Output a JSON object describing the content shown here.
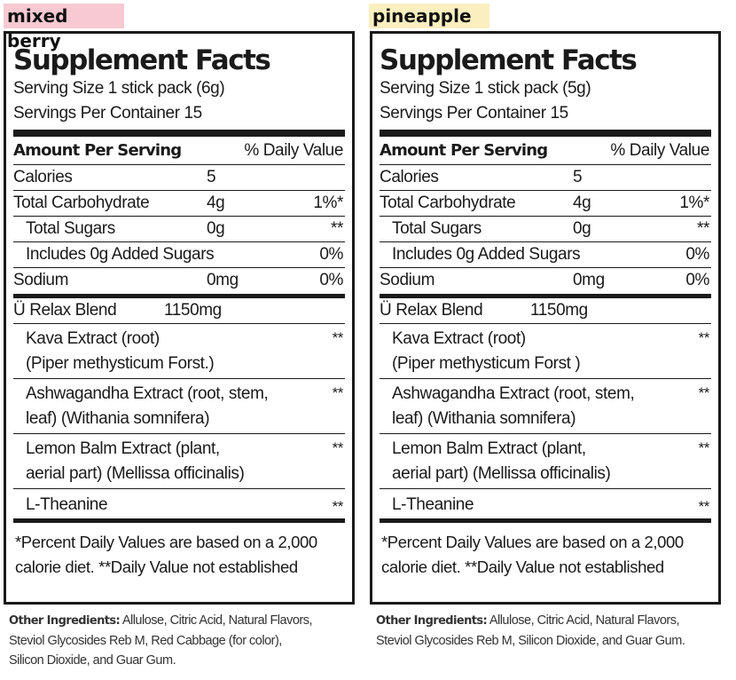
{
  "left": {
    "flavor": "mixed berry",
    "flavor_bg": "#f7c9d3",
    "title": "Supplement Facts",
    "serving_size": "Serving Size 1 stick pack (6g)",
    "servings_per_container": "Servings Per Container 15",
    "amount_header": "Amount Per Serving",
    "dv_header": "% Daily Value",
    "nutrients": [
      {
        "name": "Calories",
        "amount": "5",
        "dv": ""
      },
      {
        "name": "Total Carbohydrate",
        "amount": "4g",
        "dv": "1%*"
      },
      {
        "name": "Total Sugars",
        "amount": "0g",
        "dv": "**"
      },
      {
        "name": "Includes 0g Added Sugars",
        "amount": "",
        "dv": "0%"
      },
      {
        "name": "Sodium",
        "amount": "0mg",
        "dv": "0%"
      }
    ],
    "blend_name": "Ü Relax Blend",
    "blend_amount": "1150mg",
    "ingredients": [
      {
        "line1": "Kava Extract (root)",
        "line2": "(Piper methysticum Forst.)",
        "dv": "**"
      },
      {
        "line1": "Ashwagandha Extract (root, stem,",
        "line2": "leaf) (Withania somnifera)",
        "dv": "**"
      },
      {
        "line1": "Lemon Balm Extract (plant,",
        "line2": "aerial part) (Mellissa officinalis)",
        "dv": "**"
      },
      {
        "line1": "L-Theanine",
        "line2": "",
        "dv": "**"
      }
    ],
    "footnote_1": "*Percent Daily Values are based on a 2,000",
    "footnote_2": " calorie diet. **Daily Value not established",
    "other_label": "Other Ingredients:",
    "other_lines": [
      " Allulose, Citric Acid, Natural Flavors,",
      "Steviol Glycosides Reb M, Red Cabbage (for color),",
      "Silicon Dioxide, and Guar Gum."
    ]
  },
  "right": {
    "flavor": "pineapple",
    "flavor_bg": "#fbefc0",
    "title": "Supplement Facts",
    "serving_size": "Serving Size 1 stick pack (5g)",
    "servings_per_container": "Servings Per Container 15",
    "amount_header": "Amount Per Serving",
    "dv_header": "% Daily Value",
    "nutrients": [
      {
        "name": "Calories",
        "amount": "5",
        "dv": ""
      },
      {
        "name": "Total Carbohydrate",
        "amount": "4g",
        "dv": "1%*"
      },
      {
        "name": "Total Sugars",
        "amount": "0g",
        "dv": "**"
      },
      {
        "name": "Includes 0g Added Sugars",
        "amount": "",
        "dv": "0%"
      },
      {
        "name": "Sodium",
        "amount": "0mg",
        "dv": "0%"
      }
    ],
    "blend_name": "Ü Relax Blend",
    "blend_amount": "1150mg",
    "ingredients": [
      {
        "line1": "Kava Extract (root)",
        "line2": "(Piper methysticum Forst )",
        "dv": "**"
      },
      {
        "line1": "Ashwagandha Extract (root, stem,",
        "line2": "leaf) (Withania somnifera)",
        "dv": "**"
      },
      {
        "line1": "Lemon Balm Extract (plant,",
        "line2": "aerial part) (Mellissa officinalis)",
        "dv": "**"
      },
      {
        "line1": "L-Theanine",
        "line2": "",
        "dv": "**"
      }
    ],
    "footnote_1": "*Percent Daily Values are based on a 2,000",
    "footnote_2": " calorie diet. **Daily Value not established",
    "other_label": "Other Ingredients:",
    "other_lines": [
      " Allulose, Citric Acid, Natural Flavors,",
      "Steviol Glycosides Reb M, Silicon Dioxide, and Guar Gum."
    ]
  }
}
